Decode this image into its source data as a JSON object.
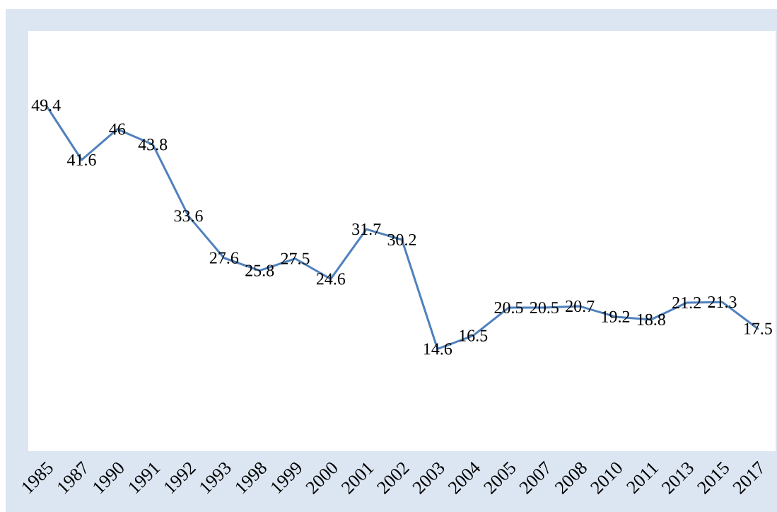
{
  "chart_data": {
    "type": "line",
    "categories": [
      "1985",
      "1987",
      "1990",
      "1991",
      "1992",
      "1993",
      "1998",
      "1999",
      "2000",
      "2001",
      "2002",
      "2003",
      "2004",
      "2005",
      "2007",
      "2008",
      "2010",
      "2011",
      "2013",
      "2015",
      "2017"
    ],
    "values": [
      49.4,
      41.6,
      46,
      43.8,
      33.6,
      27.6,
      25.8,
      27.5,
      24.6,
      31.7,
      30.2,
      14.6,
      16.5,
      20.5,
      20.5,
      20.7,
      19.2,
      18.8,
      21.2,
      21.3,
      17.5
    ],
    "color": "#4f81bd",
    "ylim": [
      0,
      60
    ],
    "data_labels": true,
    "tick_labels": "x",
    "marker": "none",
    "line_style": "solid"
  }
}
